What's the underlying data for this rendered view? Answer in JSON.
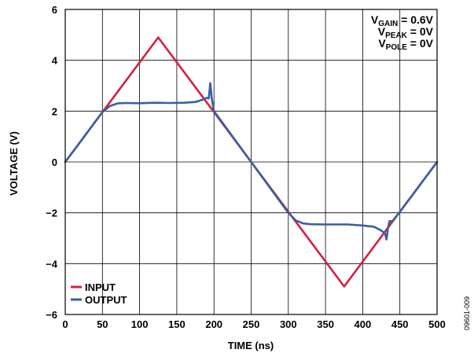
{
  "chart_data": {
    "type": "line",
    "title": "",
    "xlabel": "TIME (ns)",
    "ylabel": "VOLTAGE (V)",
    "xlim": [
      0,
      500
    ],
    "ylim": [
      -6,
      6
    ],
    "xticks": [
      0,
      50,
      100,
      150,
      200,
      250,
      300,
      350,
      400,
      450,
      500
    ],
    "yticks": [
      -6,
      -4,
      -2,
      0,
      2,
      4,
      6
    ],
    "ytick_labels": [
      "−6",
      "−4",
      "−2",
      "0",
      "2",
      "4",
      "6"
    ],
    "grid": true,
    "legend_position": "bottom-left",
    "series": [
      {
        "name": "INPUT",
        "color": "#d81e3f",
        "x": [
          0,
          125,
          375,
          500
        ],
        "y": [
          0,
          4.9,
          -4.9,
          0
        ]
      },
      {
        "name": "OUTPUT",
        "color": "#3a5fa0",
        "x": [
          0,
          20,
          40,
          50,
          60,
          70,
          80,
          100,
          120,
          140,
          160,
          175,
          185,
          190,
          193,
          195,
          197,
          200,
          210,
          230,
          250,
          270,
          290,
          300,
          310,
          320,
          330,
          350,
          380,
          400,
          415,
          425,
          430,
          432,
          434,
          436,
          440,
          450,
          470,
          500
        ],
        "y": [
          0,
          0.78,
          1.57,
          1.96,
          2.2,
          2.3,
          2.32,
          2.31,
          2.33,
          2.32,
          2.33,
          2.36,
          2.45,
          2.52,
          2.5,
          3.1,
          2.5,
          2.0,
          1.6,
          0.8,
          0,
          -0.8,
          -1.6,
          -2.0,
          -2.3,
          -2.42,
          -2.45,
          -2.46,
          -2.46,
          -2.5,
          -2.55,
          -2.7,
          -2.82,
          -3.05,
          -2.6,
          -2.33,
          -2.33,
          -1.96,
          -1.18,
          0
        ]
      }
    ],
    "annotations": [
      {
        "main": "V",
        "sub": "GAIN",
        "rest": " = 0.6V"
      },
      {
        "main": "V",
        "sub": "PEAK",
        "rest": " = 0V"
      },
      {
        "main": "V",
        "sub": "POLE",
        "rest": " = 0V"
      }
    ]
  },
  "figure_id": "09601-009"
}
